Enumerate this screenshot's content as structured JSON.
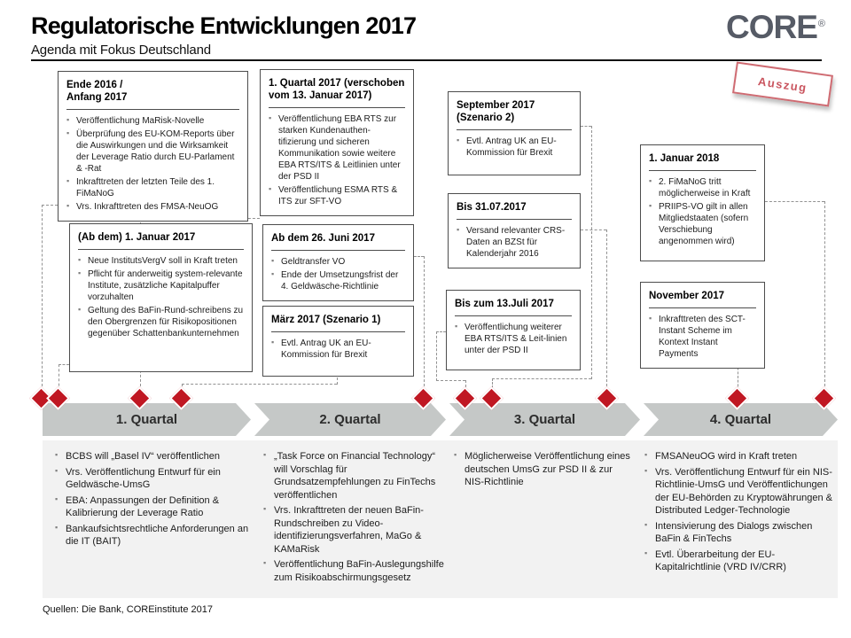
{
  "header": {
    "title": "Regulatorische Entwicklungen 2017",
    "subtitle": "Agenda mit Fokus Deutschland",
    "logo_text": "CORE",
    "logo_mark": "®",
    "stamp": "Auszug"
  },
  "colors": {
    "accent_red": "#C01722",
    "stamp_red": "#C9545E",
    "logo_gray": "#565B66",
    "arrow_gray": "#C5C8C7",
    "panel_gray": "#F2F2F2"
  },
  "boxes": [
    {
      "title": "Ende 2016 /\nAnfang 2017",
      "items": [
        "Veröffentlichung MaRisk-Novelle",
        "Überprüfung des EU-KOM-Reports über die Auswirkungen und die Wirksamkeit der Leverage Ratio durch EU-Parlament & -Rat",
        "Inkrafttreten der letzten Teile des 1. FiMaNoG",
        "Vrs. Inkrafttreten des FMSA-NeuOG"
      ]
    },
    {
      "title": "(Ab dem) 1. Januar 2017",
      "items": [
        "Neue InstitutsVergV soll in Kraft treten",
        "Pflicht für anderweitig system-relevante Institute, zusätzliche Kapitalpuffer vorzuhalten",
        "Geltung des BaFin-Rund-schreibens zu den Obergrenzen für Risikopositionen gegenüber Schattenbankunternehmen"
      ]
    },
    {
      "title": "1. Quartal 2017 (verschoben vom 13. Januar 2017)",
      "items": [
        "Veröffentlichung EBA RTS zur starken Kundenauthen-tifizierung und sicheren Kommunikation sowie weitere EBA RTS/ITS & Leitlinien unter der PSD II",
        "Veröffentlichung ESMA RTS & ITS zur SFT-VO"
      ]
    },
    {
      "title": "Ab dem 26. Juni 2017",
      "items": [
        "Geldtransfer VO",
        "Ende der Umsetzungsfrist der 4. Geldwäsche-Richtlinie"
      ]
    },
    {
      "title": "März 2017 (Szenario 1)",
      "items": [
        "Evtl. Antrag UK an EU-Kommission für Brexit"
      ]
    },
    {
      "title": "September 2017\n(Szenario 2)",
      "items": [
        "Evtl. Antrag UK an EU-Kommission für Brexit"
      ]
    },
    {
      "title": "Bis 31.07.2017",
      "items": [
        "Versand relevanter CRS-Daten an BZSt für Kalenderjahr 2016"
      ]
    },
    {
      "title": "Bis zum 13.Juli 2017",
      "items": [
        "Veröffentlichung weiterer EBA RTS/ITS & Leit-linien unter der PSD II"
      ]
    },
    {
      "title": "1. Januar 2018",
      "items": [
        "2. FiMaNoG tritt möglicherweise in Kraft",
        "PRIIPS-VO gilt in allen Mitgliedstaaten (sofern Verschiebung angenommen wird)"
      ]
    },
    {
      "title": "November 2017",
      "items": [
        "Inkrafttreten des SCT-Instant Scheme im Kontext Instant Payments"
      ]
    }
  ],
  "timeline": {
    "quarters": [
      {
        "label": "1. Quartal",
        "bullets": [
          "BCBS will „Basel IV“ veröffentlichen",
          "Vrs. Veröffentlichung Entwurf für ein Geldwäsche-UmsG",
          "EBA: Anpassungen der Definition & Kalibrierung der Leverage Ratio",
          "Bankaufsichtsrechtliche Anforderungen an die IT (BAIT)"
        ]
      },
      {
        "label": "2. Quartal",
        "bullets": [
          "„Task Force on Financial Technology“ will Vorschlag für Grundsatzempfehlungen zu FinTechs veröffentlichen",
          "Vrs. Inkrafttreten der neuen BaFin-Rundschreiben zu Video-identifizierungsverfahren, MaGo & KAMaRisk",
          "Veröffentlichung BaFin-Auslegungshilfe zum Risikoabschirmungsgesetz"
        ]
      },
      {
        "label": "3. Quartal",
        "bullets": [
          "Möglicherweise Veröffentlichung eines deutschen UmsG zur PSD II & zur NIS-Richtlinie"
        ]
      },
      {
        "label": "4. Quartal",
        "bullets": [
          "FMSANeuOG wird in Kraft treten",
          "Vrs. Veröffentlichung Entwurf für ein NIS-Richtlinie-UmsG und Veröffentlichungen der EU-Behörden zu Kryptowährungen & Distributed Ledger-Technologie",
          "Intensivierung des Dialogs zwischen BaFin & FinTechs",
          "Evtl. Überarbeitung der EU-Kapitalrichtlinie (VRD IV/CRR)"
        ]
      }
    ]
  },
  "footer": {
    "sources": "Quellen: Die Bank, COREinstitute 2017"
  }
}
